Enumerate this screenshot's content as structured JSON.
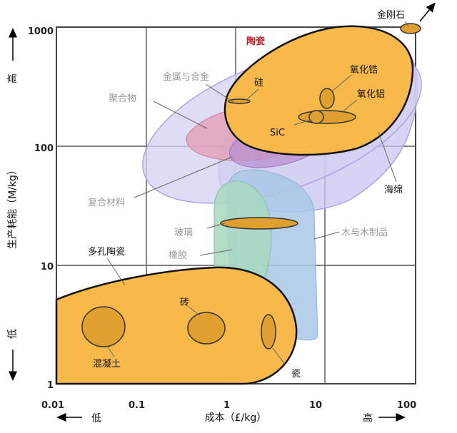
{
  "chart_data": {
    "type": "scatter",
    "xscale": "log",
    "yscale": "log",
    "xlim": [
      0.01,
      100
    ],
    "ylim": [
      1,
      1000
    ],
    "grid": true,
    "xlabel": "成本（£/kg）",
    "ylabel": "生产耗能（M/kg）",
    "x_low_label": "低",
    "x_high_label": "高",
    "y_low_label": "低",
    "y_high_label": "高",
    "x_ticks": [
      {
        "value": 0.01,
        "label": "0.01"
      },
      {
        "value": 0.1,
        "label": "0.1"
      },
      {
        "value": 1,
        "label": "1"
      },
      {
        "value": 10,
        "label": "10"
      },
      {
        "value": 100,
        "label": "100"
      }
    ],
    "y_ticks": [
      {
        "value": 1,
        "label": "1"
      },
      {
        "value": 10,
        "label": "10"
      },
      {
        "value": 100,
        "label": "100"
      },
      {
        "value": 1000,
        "label": "1000"
      }
    ],
    "regions": [
      {
        "name": "海绵",
        "color": "#c8c4f0"
      },
      {
        "name": "复合材料",
        "color": "#d4d0f2"
      },
      {
        "name": "金属与合金",
        "color": "#c9a6d8"
      },
      {
        "name": "聚合物",
        "color": "#e2a0b8"
      },
      {
        "name": "木与木制品",
        "color": "#a9c8e8"
      },
      {
        "name": "橡胶",
        "color": "#a8d8c0"
      },
      {
        "name": "陶瓷",
        "color": "#f7b94a"
      },
      {
        "name": "多孔陶瓷",
        "color": "#f7b94a"
      }
    ],
    "materials": [
      {
        "name": "金刚石",
        "x": 100,
        "y": 1000
      },
      {
        "name": "硅",
        "x": 1.3,
        "y": 240
      },
      {
        "name": "氧化锆",
        "x": 10.5,
        "y": 250
      },
      {
        "name": "氧化铝",
        "x": 10,
        "y": 170
      },
      {
        "name": "SiC",
        "x": 7.5,
        "y": 170
      },
      {
        "name": "玻璃",
        "x": 3,
        "y": 23
      },
      {
        "name": "砖",
        "x": 0.6,
        "y": 3
      },
      {
        "name": "混凝土",
        "x": 0.04,
        "y": 3
      },
      {
        "name": "瓷",
        "x": 2.8,
        "y": 3
      }
    ]
  }
}
